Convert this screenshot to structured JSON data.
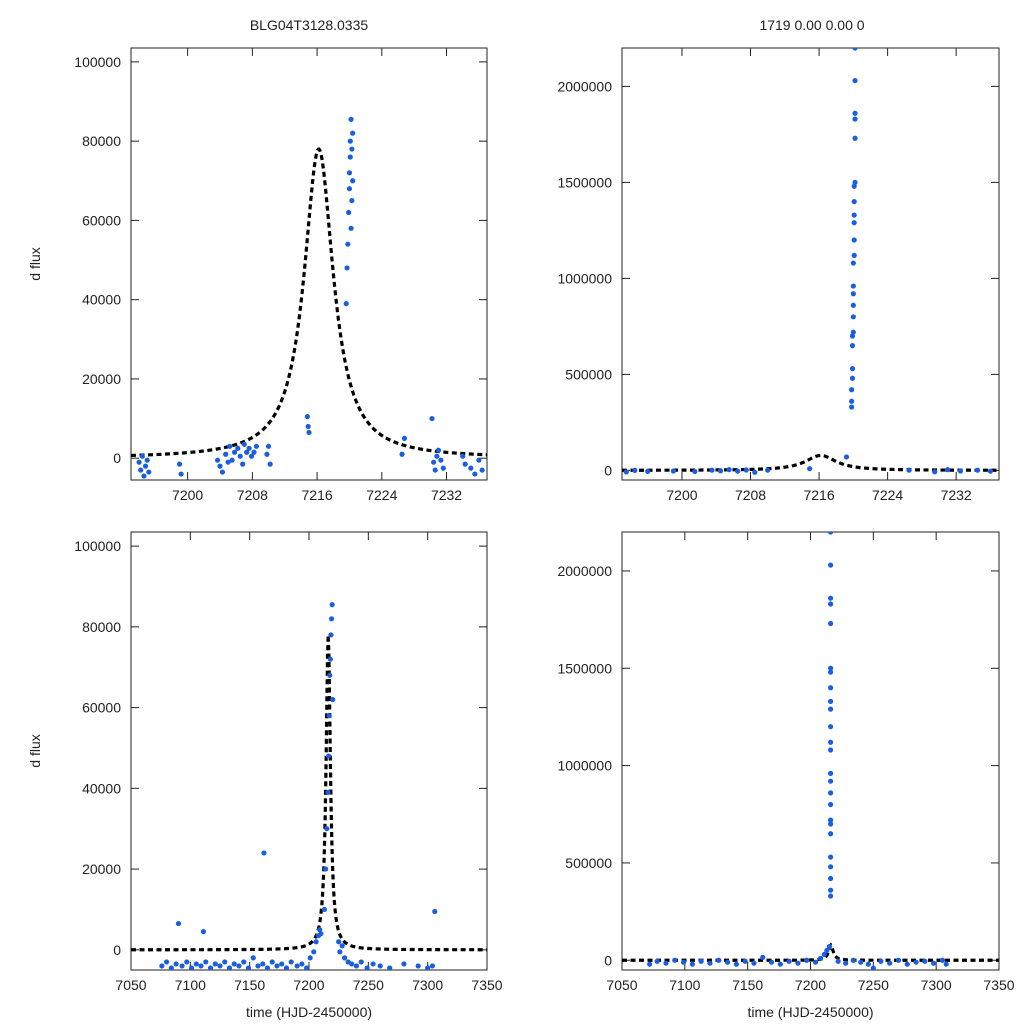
{
  "figure": {
    "title_left": "BLG04T3128.0335",
    "title_right": "1719  0.00  0.00  0"
  },
  "colors": {
    "points": "#1a5fe0",
    "fit": "#000000"
  },
  "chart_data": [
    {
      "type": "scatter",
      "panel": "top-left",
      "xlabel": "",
      "ylabel": "d flux",
      "xlim": [
        7193,
        7237
      ],
      "ylim": [
        -5500,
        103500
      ],
      "xticks": [
        7200,
        7208,
        7216,
        7224,
        7232
      ],
      "yticks": [
        0,
        20000,
        40000,
        60000,
        80000,
        100000
      ],
      "fit": {
        "t0": 7216.2,
        "peak": 78000,
        "tau": 2.2
      },
      "series": [
        {
          "name": "data",
          "points": [
            [
              7194,
              -1000
            ],
            [
              7194.2,
              -3000
            ],
            [
              7194.4,
              500
            ],
            [
              7194.6,
              -4500
            ],
            [
              7194.8,
              -2000
            ],
            [
              7195,
              -500
            ],
            [
              7195.2,
              -3500
            ],
            [
              7199,
              -1500
            ],
            [
              7199.2,
              -4000
            ],
            [
              7203.7,
              -500
            ],
            [
              7204,
              -2000
            ],
            [
              7204.3,
              -3500
            ],
            [
              7204.7,
              1000
            ],
            [
              7205,
              -1000
            ],
            [
              7205.2,
              3000
            ],
            [
              7205.5,
              -500
            ],
            [
              7205.8,
              1500
            ],
            [
              7206.2,
              2500
            ],
            [
              7206.5,
              500
            ],
            [
              7206.8,
              -1500
            ],
            [
              7207,
              3500
            ],
            [
              7207.3,
              1500
            ],
            [
              7207.6,
              2500
            ],
            [
              7207.9,
              500
            ],
            [
              7208.2,
              1500
            ],
            [
              7208.5,
              3000
            ],
            [
              7209.8,
              1000
            ],
            [
              7210,
              3000
            ],
            [
              7210.2,
              -1500
            ],
            [
              7214.8,
              10500
            ],
            [
              7214.9,
              8000
            ],
            [
              7215,
              6500
            ],
            [
              7219.6,
              39000
            ],
            [
              7219.7,
              48000
            ],
            [
              7219.8,
              54000
            ],
            [
              7219.9,
              62000
            ],
            [
              7220,
              68000
            ],
            [
              7220,
              72000
            ],
            [
              7220.1,
              76000
            ],
            [
              7220.1,
              80000
            ],
            [
              7220.2,
              85500
            ],
            [
              7220.2,
              58000
            ],
            [
              7220.3,
              65000
            ],
            [
              7220.4,
              70000
            ],
            [
              7220.3,
              78000
            ],
            [
              7220.4,
              82000
            ],
            [
              7226.5,
              1000
            ],
            [
              7226.8,
              5000
            ],
            [
              7230.2,
              10000
            ],
            [
              7230.4,
              -1000
            ],
            [
              7230.6,
              -3000
            ],
            [
              7230.8,
              500
            ],
            [
              7231,
              2000
            ],
            [
              7231.3,
              -500
            ],
            [
              7231.6,
              -2500
            ],
            [
              7234,
              500
            ],
            [
              7234.3,
              -1500
            ],
            [
              7235,
              -2500
            ],
            [
              7235.5,
              -4000
            ],
            [
              7236,
              -500
            ],
            [
              7236.4,
              -3000
            ]
          ]
        }
      ]
    },
    {
      "type": "scatter",
      "panel": "top-right",
      "xlabel": "",
      "ylabel": "",
      "xlim": [
        7193,
        7237
      ],
      "ylim": [
        -50000,
        2200000
      ],
      "xticks": [
        7200,
        7208,
        7216,
        7224,
        7232
      ],
      "yticks": [
        0,
        500000,
        1000000,
        1500000,
        2000000
      ],
      "fit": {
        "t0": 7216.2,
        "peak": 78000,
        "tau": 2.2
      },
      "series": [
        {
          "name": "data",
          "points": [
            [
              7193.5,
              -8000
            ],
            [
              7194.5,
              0
            ],
            [
              7196,
              -5000
            ],
            [
              7199,
              -3000
            ],
            [
              7201.5,
              -6000
            ],
            [
              7203.5,
              1000
            ],
            [
              7204.5,
              -2000
            ],
            [
              7205.5,
              4000
            ],
            [
              7206.5,
              -4000
            ],
            [
              7207.5,
              2000
            ],
            [
              7208.5,
              -10000
            ],
            [
              7210,
              1000
            ],
            [
              7214.9,
              9000
            ],
            [
              7219.2,
              70000
            ],
            [
              7219.8,
              330000
            ],
            [
              7219.8,
              360000
            ],
            [
              7219.8,
              420000
            ],
            [
              7219.9,
              480000
            ],
            [
              7219.9,
              530000
            ],
            [
              7219.9,
              650000
            ],
            [
              7219.9,
              700000
            ],
            [
              7220,
              720000
            ],
            [
              7220,
              800000
            ],
            [
              7220,
              860000
            ],
            [
              7220,
              920000
            ],
            [
              7220,
              960000
            ],
            [
              7220,
              1080000
            ],
            [
              7220.1,
              1120000
            ],
            [
              7220.1,
              1200000
            ],
            [
              7220.1,
              1290000
            ],
            [
              7220.1,
              1330000
            ],
            [
              7220.1,
              1400000
            ],
            [
              7220.1,
              1480000
            ],
            [
              7220.2,
              1500000
            ],
            [
              7220.2,
              1730000
            ],
            [
              7220.2,
              1830000
            ],
            [
              7220.2,
              1860000
            ],
            [
              7220.2,
              2030000
            ],
            [
              7220.2,
              2200000
            ],
            [
              7226.5,
              1000
            ],
            [
              7229.5,
              -7000
            ],
            [
              7231,
              4000
            ],
            [
              7232.5,
              -3000
            ],
            [
              7234.5,
              1000
            ],
            [
              7236,
              -4000
            ]
          ]
        }
      ]
    },
    {
      "type": "scatter",
      "panel": "bottom-left",
      "xlabel": "time (HJD-2450000)",
      "ylabel": "d flux",
      "xlim": [
        7050,
        7350
      ],
      "ylim": [
        -5000,
        103500
      ],
      "xticks": [
        7050,
        7100,
        7150,
        7200,
        7250,
        7300,
        7350
      ],
      "yticks": [
        0,
        20000,
        40000,
        60000,
        80000,
        100000
      ],
      "fit": {
        "t0": 7216.2,
        "peak": 78000,
        "tau": 2.2
      },
      "series": [
        {
          "name": "data",
          "points": [
            [
              7076,
              -4000
            ],
            [
              7080,
              -3000
            ],
            [
              7084,
              -4500
            ],
            [
              7088,
              -3500
            ],
            [
              7090,
              6500
            ],
            [
              7093,
              -4000
            ],
            [
              7097,
              -3000
            ],
            [
              7101,
              -4500
            ],
            [
              7105,
              -3500
            ],
            [
              7109,
              -4000
            ],
            [
              7111,
              4500
            ],
            [
              7113,
              -3000
            ],
            [
              7117,
              -4500
            ],
            [
              7121,
              -3500
            ],
            [
              7125,
              -4000
            ],
            [
              7129,
              -3000
            ],
            [
              7133,
              -4500
            ],
            [
              7137,
              -3500
            ],
            [
              7141,
              -4000
            ],
            [
              7145,
              -3000
            ],
            [
              7149,
              -4500
            ],
            [
              7153,
              -2000
            ],
            [
              7157,
              -4000
            ],
            [
              7161,
              -3500
            ],
            [
              7162,
              24000
            ],
            [
              7165,
              -4500
            ],
            [
              7169,
              -3000
            ],
            [
              7173,
              -4000
            ],
            [
              7177,
              -3500
            ],
            [
              7181,
              -4500
            ],
            [
              7185,
              -3000
            ],
            [
              7190,
              -4000
            ],
            [
              7194,
              -3500
            ],
            [
              7198,
              -4500
            ],
            [
              7201,
              -2000
            ],
            [
              7204,
              -500
            ],
            [
              7206,
              2000
            ],
            [
              7208,
              3500
            ],
            [
              7209,
              5000
            ],
            [
              7210,
              4000
            ],
            [
              7213,
              10000
            ],
            [
              7214,
              20000
            ],
            [
              7215,
              30000
            ],
            [
              7216,
              39000
            ],
            [
              7216.5,
              48000
            ],
            [
              7217,
              58000
            ],
            [
              7217.5,
              68000
            ],
            [
              7218,
              72000
            ],
            [
              7218.5,
              78000
            ],
            [
              7219,
              82000
            ],
            [
              7219.5,
              85500
            ],
            [
              7220,
              62000
            ],
            [
              7225,
              2000
            ],
            [
              7226,
              -500
            ],
            [
              7228,
              1000
            ],
            [
              7230,
              -2000
            ],
            [
              7233,
              -3000
            ],
            [
              7236,
              -3500
            ],
            [
              7240,
              -4000
            ],
            [
              7244,
              -3000
            ],
            [
              7249,
              -4500
            ],
            [
              7254,
              -3500
            ],
            [
              7260,
              -4000
            ],
            [
              7268,
              -4500
            ],
            [
              7280,
              -3500
            ],
            [
              7292,
              -4000
            ],
            [
              7300,
              -4500
            ],
            [
              7304,
              -4000
            ],
            [
              7306,
              9500
            ]
          ]
        }
      ]
    },
    {
      "type": "scatter",
      "panel": "bottom-right",
      "xlabel": "time (HJD-2450000)",
      "ylabel": "",
      "xlim": [
        7050,
        7350
      ],
      "ylim": [
        -50000,
        2200000
      ],
      "xticks": [
        7050,
        7100,
        7150,
        7200,
        7250,
        7300,
        7350
      ],
      "yticks": [
        0,
        500000,
        1000000,
        1500000,
        2000000
      ],
      "fit": {
        "t0": 7216.2,
        "peak": 78000,
        "tau": 2.2
      },
      "series": [
        {
          "name": "data",
          "points": [
            [
              7072,
              -20000
            ],
            [
              7078,
              -5000
            ],
            [
              7085,
              -15000
            ],
            [
              7092,
              0
            ],
            [
              7099,
              -10000
            ],
            [
              7106,
              -20000
            ],
            [
              7113,
              -5000
            ],
            [
              7120,
              -15000
            ],
            [
              7127,
              0
            ],
            [
              7134,
              -10000
            ],
            [
              7141,
              -20000
            ],
            [
              7148,
              -5000
            ],
            [
              7155,
              -15000
            ],
            [
              7162,
              15000
            ],
            [
              7169,
              -10000
            ],
            [
              7176,
              -20000
            ],
            [
              7183,
              -5000
            ],
            [
              7190,
              -15000
            ],
            [
              7197,
              0
            ],
            [
              7204,
              -10000
            ],
            [
              7208,
              10000
            ],
            [
              7211,
              30000
            ],
            [
              7213,
              50000
            ],
            [
              7215,
              70000
            ],
            [
              7216,
              330000
            ],
            [
              7216,
              360000
            ],
            [
              7216,
              420000
            ],
            [
              7216,
              480000
            ],
            [
              7216,
              530000
            ],
            [
              7216,
              650000
            ],
            [
              7216,
              700000
            ],
            [
              7216,
              720000
            ],
            [
              7216,
              800000
            ],
            [
              7216,
              860000
            ],
            [
              7216,
              920000
            ],
            [
              7216,
              960000
            ],
            [
              7216,
              1080000
            ],
            [
              7216,
              1120000
            ],
            [
              7216,
              1200000
            ],
            [
              7216,
              1290000
            ],
            [
              7216,
              1330000
            ],
            [
              7216,
              1400000
            ],
            [
              7216,
              1480000
            ],
            [
              7216,
              1500000
            ],
            [
              7216,
              1730000
            ],
            [
              7216,
              1830000
            ],
            [
              7216,
              1860000
            ],
            [
              7216,
              2030000
            ],
            [
              7216,
              2200000
            ],
            [
              7222,
              -5000
            ],
            [
              7228,
              -15000
            ],
            [
              7234,
              0
            ],
            [
              7240,
              -10000
            ],
            [
              7246,
              -20000
            ],
            [
              7250,
              -40000
            ],
            [
              7256,
              -5000
            ],
            [
              7263,
              -15000
            ],
            [
              7270,
              0
            ],
            [
              7277,
              -20000
            ],
            [
              7284,
              -10000
            ],
            [
              7291,
              -5000
            ],
            [
              7298,
              -15000
            ],
            [
              7305,
              0
            ],
            [
              7308,
              -20000
            ]
          ]
        }
      ]
    }
  ]
}
